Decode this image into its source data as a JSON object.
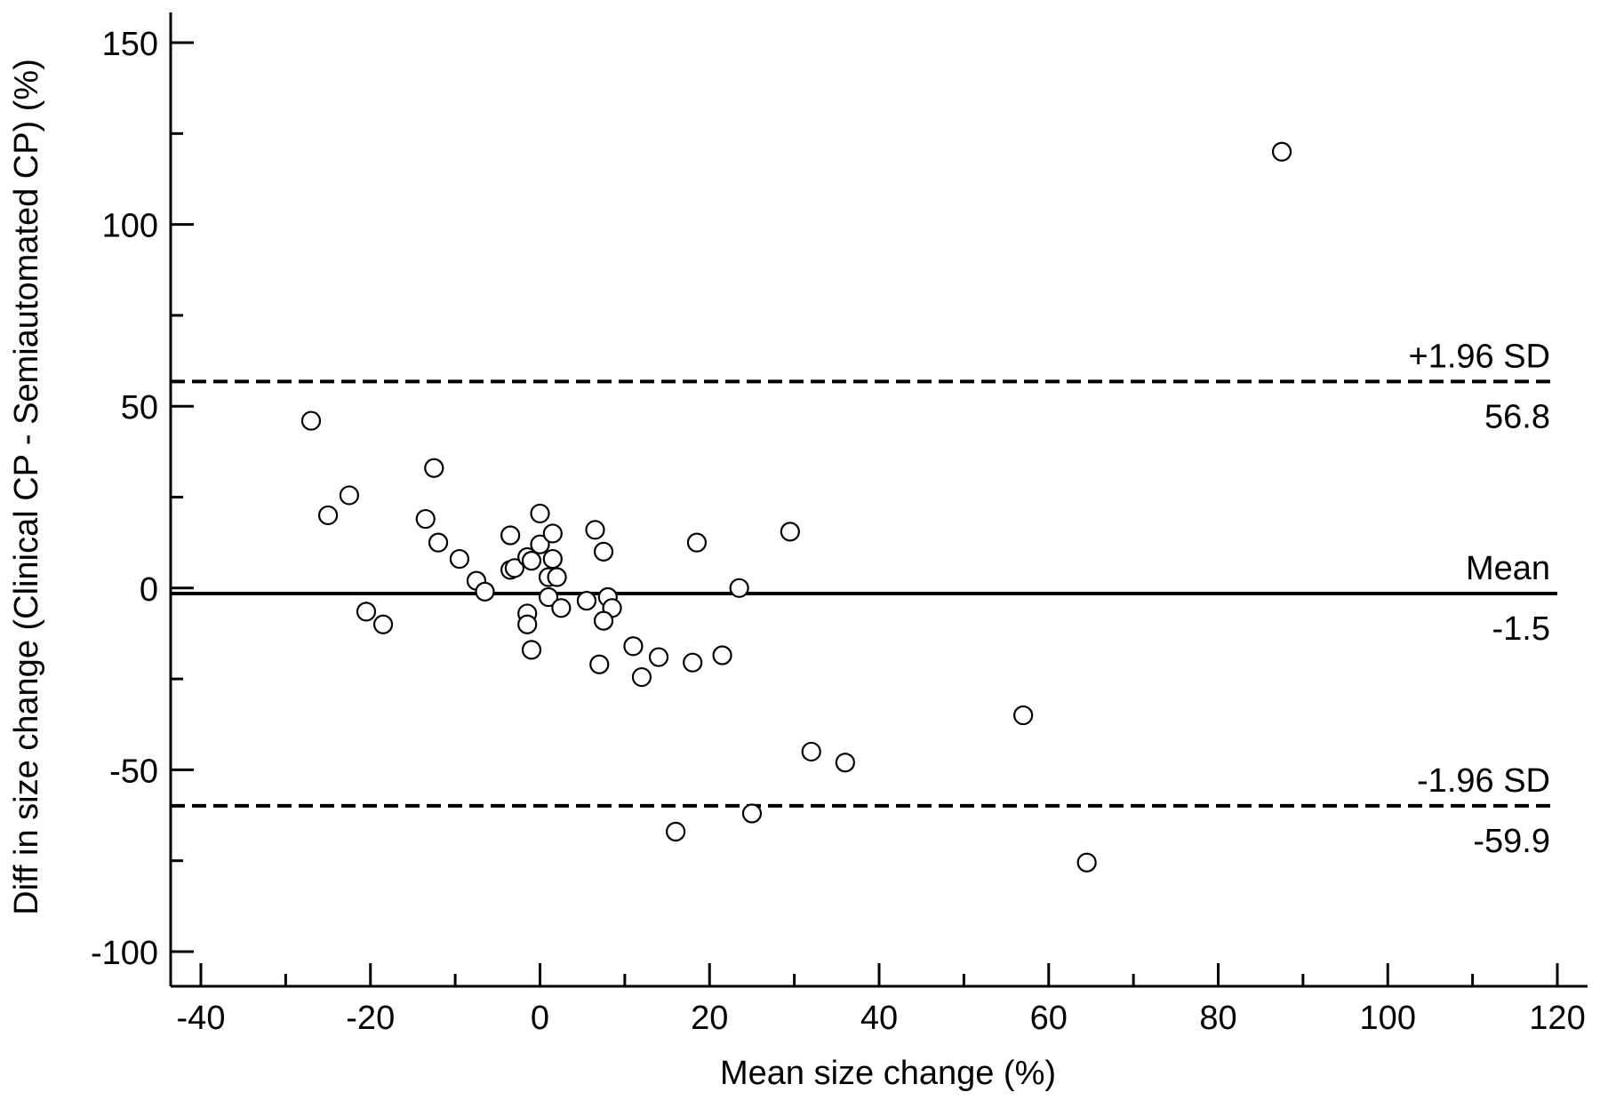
{
  "chart_data": {
    "type": "scatter",
    "title": "",
    "xlabel": "Mean size change (%)",
    "ylabel": "Diff in size change (Clinical CP - Semiautomated CP) (%)",
    "xlim": [
      -40,
      120
    ],
    "ylim": [
      -100,
      150
    ],
    "x_ticks": [
      -40,
      -20,
      0,
      20,
      40,
      60,
      80,
      100,
      120
    ],
    "y_ticks": [
      -100,
      -50,
      0,
      50,
      100,
      150
    ],
    "grid": false,
    "reference_lines": [
      {
        "label": "+1.96 SD",
        "value_label": "56.8",
        "value": 56.8,
        "style": "dashed"
      },
      {
        "label": "Mean",
        "value_label": "-1.5",
        "value": -1.5,
        "style": "solid"
      },
      {
        "label": "-1.96 SD",
        "value_label": "-59.9",
        "value": -59.9,
        "style": "dashed"
      }
    ],
    "points": [
      {
        "x": 87.5,
        "y": 120
      },
      {
        "x": -27,
        "y": 46
      },
      {
        "x": -22.5,
        "y": 25.5
      },
      {
        "x": -25,
        "y": 20
      },
      {
        "x": -12.5,
        "y": 33
      },
      {
        "x": -13.5,
        "y": 19
      },
      {
        "x": -12,
        "y": 12.5
      },
      {
        "x": -9.5,
        "y": 8
      },
      {
        "x": -7.5,
        "y": 2
      },
      {
        "x": -6.5,
        "y": -1
      },
      {
        "x": -20.5,
        "y": -6.5
      },
      {
        "x": -18.5,
        "y": -10
      },
      {
        "x": -3.5,
        "y": 14.5
      },
      {
        "x": -3.5,
        "y": 5
      },
      {
        "x": -3,
        "y": 5.5
      },
      {
        "x": -1.5,
        "y": 8.5
      },
      {
        "x": -1,
        "y": 7.5
      },
      {
        "x": 0,
        "y": 20.5
      },
      {
        "x": 0,
        "y": 12
      },
      {
        "x": 1.5,
        "y": 15
      },
      {
        "x": 1.5,
        "y": 8
      },
      {
        "x": 1,
        "y": 3
      },
      {
        "x": 2,
        "y": 3
      },
      {
        "x": 1,
        "y": -2.5
      },
      {
        "x": 2.5,
        "y": -5.5
      },
      {
        "x": 5.5,
        "y": -3.5
      },
      {
        "x": -1.5,
        "y": -7
      },
      {
        "x": -1.5,
        "y": -10
      },
      {
        "x": -1,
        "y": -17
      },
      {
        "x": 6.5,
        "y": 16
      },
      {
        "x": 7.5,
        "y": 10
      },
      {
        "x": 8,
        "y": -2.5
      },
      {
        "x": 8.5,
        "y": -5.5
      },
      {
        "x": 7.5,
        "y": -9
      },
      {
        "x": 7,
        "y": -21
      },
      {
        "x": 11,
        "y": -16
      },
      {
        "x": 12,
        "y": -24.5
      },
      {
        "x": 14,
        "y": -19
      },
      {
        "x": 18.5,
        "y": 12.5
      },
      {
        "x": 18,
        "y": -20.5
      },
      {
        "x": 21.5,
        "y": -18.5
      },
      {
        "x": 23.5,
        "y": 0
      },
      {
        "x": 29.5,
        "y": 15.5
      },
      {
        "x": 32,
        "y": -45
      },
      {
        "x": 36,
        "y": -48
      },
      {
        "x": 25,
        "y": -62
      },
      {
        "x": 16,
        "y": -67
      },
      {
        "x": 57,
        "y": -35
      },
      {
        "x": 64.5,
        "y": -75.5
      }
    ]
  }
}
